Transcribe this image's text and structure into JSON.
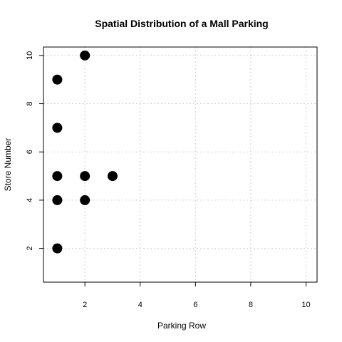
{
  "chart_data": {
    "type": "scatter",
    "title": "Spatial Distribution of a Mall Parking",
    "xlabel": "Parking Row",
    "ylabel": "Store Number",
    "xlim": [
      0.5,
      10.4
    ],
    "ylim": [
      0.6,
      10.35
    ],
    "xticks": [
      2,
      4,
      6,
      8,
      10
    ],
    "yticks": [
      2,
      4,
      6,
      8,
      10
    ],
    "grid": true,
    "legend": "none",
    "point_color": "#000000",
    "x": [
      2,
      1,
      1,
      1,
      2,
      3,
      1,
      2,
      1
    ],
    "y": [
      10,
      9,
      7,
      5,
      5,
      5,
      4,
      4,
      2
    ]
  }
}
